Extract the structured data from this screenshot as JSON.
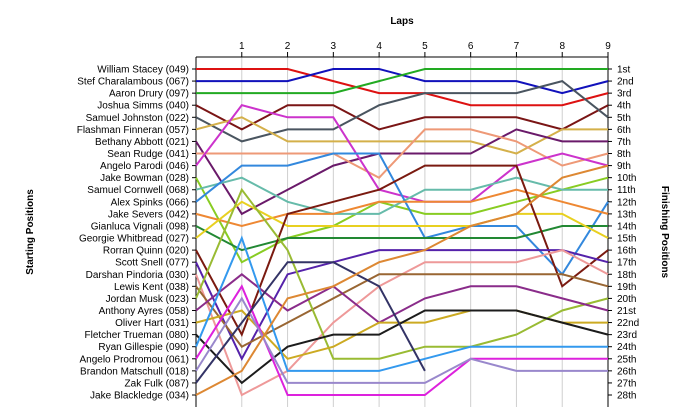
{
  "chart_data": {
    "type": "line",
    "title": "",
    "xlabel_top": "Laps",
    "ylabel_left": "Starting Positions",
    "ylabel_right": "Finishing Positions",
    "x_ticks": [
      "1",
      "2",
      "3",
      "4",
      "5",
      "6",
      "7",
      "8",
      "9"
    ],
    "xlim": [
      0,
      9
    ],
    "ylim": [
      1,
      28
    ],
    "y_inverted": true,
    "grid": "vertical lines at each lap",
    "start_labels": [
      "William Stacey (049)",
      "Stef Charalambous (067)",
      "Aaron Drury (097)",
      "Joshua Simms (040)",
      "Samuel Johnston (022)",
      "Flashman Finneran (057)",
      "Bethany Abbott (021)",
      "Sean Rudge (041)",
      "Angelo Parodi (046)",
      "Jake Bowman (028)",
      "Samuel Cornwell (068)",
      "Alex Spinks (066)",
      "Jake Severs (042)",
      "Gianluca Vignali (098)",
      "Georgie Whitbread (027)",
      "Rorran Quinn (020)",
      "Scott Snell (077)",
      "Darshan Pindoria (030)",
      "Lewis Kent (038)",
      "Jordan Musk (023)",
      "Anthony Ayres (058)",
      "Oliver Hart (031)",
      "Fletcher Trueman (080)",
      "Ryan Gillespie (090)",
      "Angelo Prodromou (061)",
      "Brandon Matschull (018)",
      "Zak Fulk (087)",
      "Jake Blackledge (034)"
    ],
    "finish_labels": [
      "1st",
      "2nd",
      "3rd",
      "4th",
      "5th",
      "6th",
      "7th",
      "8th",
      "9th",
      "10th",
      "11th",
      "12th",
      "13th",
      "14th",
      "15th",
      "16th",
      "17th",
      "18th",
      "19th",
      "20th",
      "21st",
      "22nd",
      "23rd",
      "24th",
      "25th",
      "26th",
      "27th",
      "28th"
    ],
    "series": [
      {
        "start": 1,
        "color": "#dd1111",
        "positions": [
          1,
          1,
          2,
          3,
          3,
          4,
          4,
          4,
          3
        ]
      },
      {
        "start": 2,
        "color": "#1111bb",
        "positions": [
          2,
          2,
          1,
          1,
          2,
          2,
          2,
          3,
          2
        ]
      },
      {
        "start": 3,
        "color": "#22aa22",
        "positions": [
          3,
          3,
          3,
          2,
          1,
          1,
          1,
          1,
          1
        ]
      },
      {
        "start": 4,
        "color": "#7a1515",
        "positions": [
          6,
          4,
          4,
          6,
          5,
          5,
          5,
          6,
          4
        ]
      },
      {
        "start": 5,
        "color": "#4a5560",
        "positions": [
          7,
          6,
          6,
          4,
          3,
          3,
          3,
          2,
          5
        ]
      },
      {
        "start": 6,
        "color": "#d4b04a",
        "positions": [
          5,
          7,
          7,
          7,
          7,
          7,
          8,
          6,
          6
        ]
      },
      {
        "start": 7,
        "color": "#6a1a6a",
        "positions": [
          13,
          11,
          9,
          8,
          8,
          8,
          6,
          7,
          7
        ]
      },
      {
        "start": 8,
        "color": "#ee9977",
        "positions": [
          8,
          8,
          8,
          10,
          6,
          6,
          7,
          9,
          8
        ]
      },
      {
        "start": 9,
        "color": "#cc33cc",
        "positions": [
          4,
          5,
          5,
          11,
          12,
          12,
          9,
          8,
          9
        ]
      },
      {
        "start": 10,
        "color": "#88cc22",
        "positions": [
          17,
          15,
          14,
          12,
          13,
          13,
          12,
          11,
          10
        ]
      },
      {
        "start": 11,
        "color": "#66bbaa",
        "positions": [
          10,
          12,
          13,
          13,
          11,
          11,
          10,
          11,
          11
        ]
      },
      {
        "start": 12,
        "color": "#3388dd",
        "positions": [
          9,
          9,
          8,
          8,
          15,
          14,
          14,
          18,
          12
        ]
      },
      {
        "start": 13,
        "color": "#ee8833",
        "positions": [
          14,
          13,
          13,
          12,
          12,
          12,
          11,
          12,
          13
        ]
      },
      {
        "start": 14,
        "color": "#228833",
        "positions": [
          16,
          15,
          15,
          15,
          15,
          15,
          15,
          14,
          14
        ]
      },
      {
        "start": 15,
        "color": "#e8d020",
        "positions": [
          12,
          14,
          14,
          14,
          14,
          14,
          13,
          13,
          15
        ]
      },
      {
        "start": 16,
        "color": "#7a1a10",
        "positions": [
          23,
          13,
          12,
          11,
          9,
          9,
          9,
          19,
          16
        ]
      },
      {
        "start": 17,
        "color": "#5522aa",
        "positions": [
          25,
          18,
          17,
          16,
          16,
          16,
          16,
          16,
          17
        ]
      },
      {
        "start": 18,
        "color": "#ee9999",
        "positions": [
          28,
          26,
          22,
          19,
          17,
          17,
          17,
          16,
          18
        ]
      },
      {
        "start": 19,
        "color": "#996633",
        "positions": [
          24,
          22,
          20,
          18,
          18,
          18,
          18,
          18,
          19
        ]
      },
      {
        "start": 20,
        "color": "#99bb33",
        "positions": [
          11,
          16,
          25,
          25,
          24,
          24,
          23,
          21,
          20
        ]
      },
      {
        "start": 21,
        "color": "#8a2c8a",
        "positions": [
          18,
          21,
          19,
          22,
          20,
          19,
          19,
          20,
          21
        ]
      },
      {
        "start": 22,
        "color": "#ccaa22",
        "positions": [
          21,
          25,
          24,
          22,
          22,
          21,
          21,
          22,
          22
        ]
      },
      {
        "start": 23,
        "color": "#1c1c1c",
        "positions": [
          27,
          24,
          23,
          23,
          21,
          21,
          21,
          22,
          23
        ]
      },
      {
        "start": 24,
        "color": "#3399ee",
        "positions": [
          15,
          26,
          26,
          26,
          25,
          24,
          24,
          24,
          24
        ]
      },
      {
        "start": 25,
        "color": "#dd22dd",
        "positions": [
          19,
          28,
          28,
          28,
          28,
          25,
          25,
          25,
          25
        ]
      },
      {
        "start": 26,
        "color": "#9988cc",
        "positions": [
          20,
          27,
          27,
          27,
          27,
          25,
          26,
          26,
          26
        ]
      },
      {
        "start": 27,
        "color": "#333366",
        "positions": [
          22,
          17,
          17,
          19,
          26
        ]
      },
      {
        "start": 28,
        "color": "#dd8833",
        "positions": [
          26,
          20,
          19,
          17,
          16,
          14,
          13,
          10,
          9
        ]
      }
    ]
  }
}
